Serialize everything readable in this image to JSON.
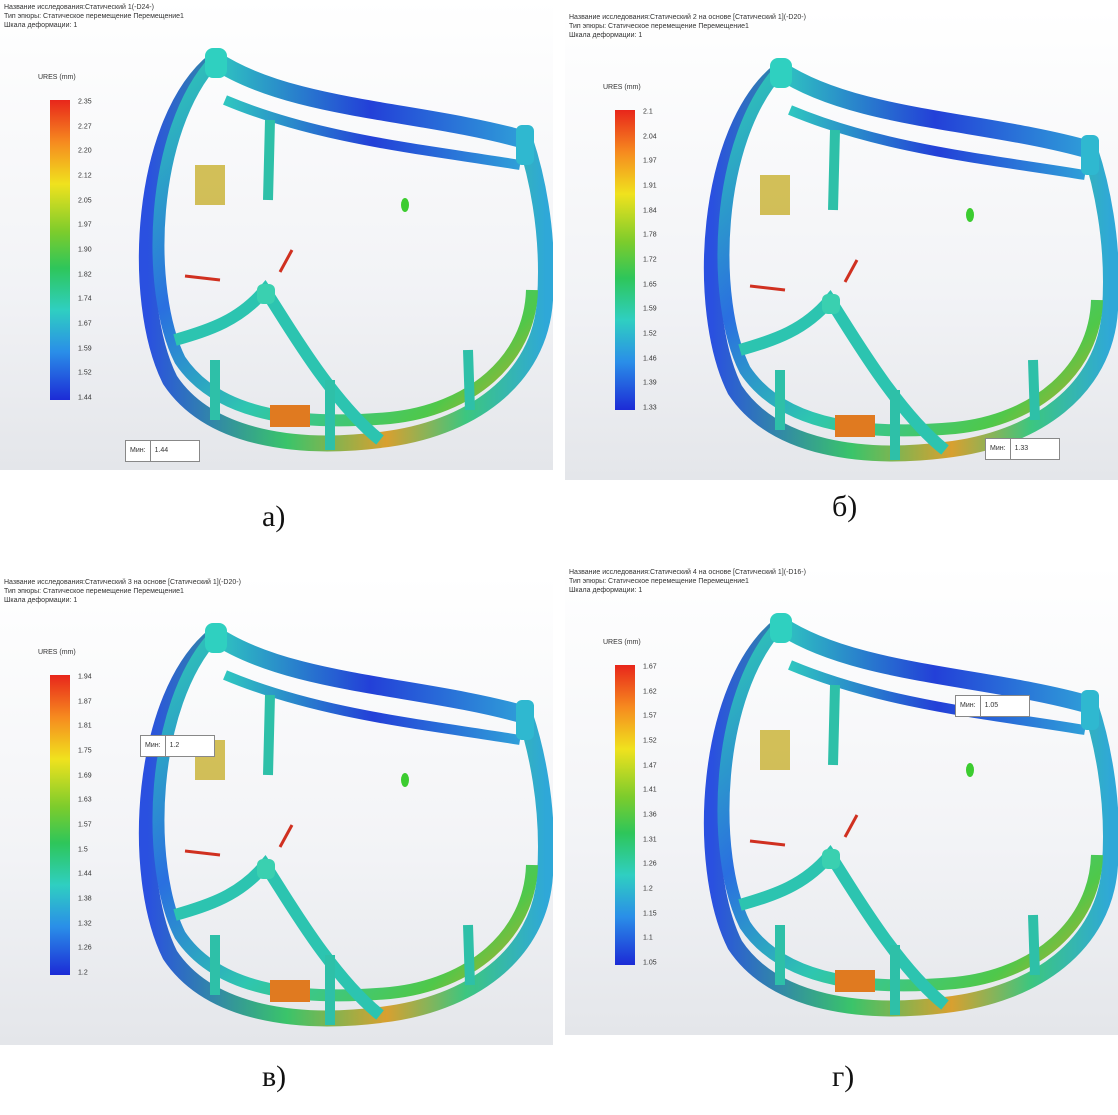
{
  "panels": [
    {
      "header": [
        "Название исследования:Статический 1(-D24-)",
        "Тип эпюры: Статическое перемещение Перемещение1",
        "Шкала деформации: 1"
      ],
      "legend": {
        "title": "URES (mm)",
        "labels": [
          "2.35",
          "2.27",
          "2.20",
          "2.12",
          "2.05",
          "1.97",
          "1.90",
          "1.82",
          "1.74",
          "1.67",
          "1.59",
          "1.52",
          "1.44"
        ]
      },
      "min": {
        "label": "Мин:",
        "value": "1.44"
      },
      "caption": "а)"
    },
    {
      "header": [
        "Название исследования:Статический 2 на основе [Статический 1](-D20-)",
        "Тип эпюры: Статическое перемещение Перемещение1",
        "Шкала деформации: 1"
      ],
      "legend": {
        "title": "URES (mm)",
        "labels": [
          "2.1",
          "2.04",
          "1.97",
          "1.91",
          "1.84",
          "1.78",
          "1.72",
          "1.65",
          "1.59",
          "1.52",
          "1.46",
          "1.39",
          "1.33"
        ]
      },
      "min": {
        "label": "Мин:",
        "value": "1.33"
      },
      "caption": "б)"
    },
    {
      "header": [
        "Название исследования:Статический 3 на основе [Статический 1](-D20-)",
        "Тип эпюры: Статическое перемещение Перемещение1",
        "Шкала деформации: 1"
      ],
      "legend": {
        "title": "URES (mm)",
        "labels": [
          "1.94",
          "1.87",
          "1.81",
          "1.75",
          "1.69",
          "1.63",
          "1.57",
          "1.5",
          "1.44",
          "1.38",
          "1.32",
          "1.26",
          "1.2"
        ]
      },
      "min": {
        "label": "Мин:",
        "value": "1.2"
      },
      "caption": "в)"
    },
    {
      "header": [
        "Название исследования:Статический 4 на основе [Статический 1](-D16-)",
        "Тип эпюры: Статическое перемещение Перемещение1",
        "Шкала деформации: 1"
      ],
      "legend": {
        "title": "URES (mm)",
        "labels": [
          "1.67",
          "1.62",
          "1.57",
          "1.52",
          "1.47",
          "1.41",
          "1.36",
          "1.31",
          "1.26",
          "1.2",
          "1.15",
          "1.1",
          "1.05"
        ]
      },
      "min": {
        "label": "Мин:",
        "value": "1.05"
      },
      "caption": "г)"
    }
  ]
}
